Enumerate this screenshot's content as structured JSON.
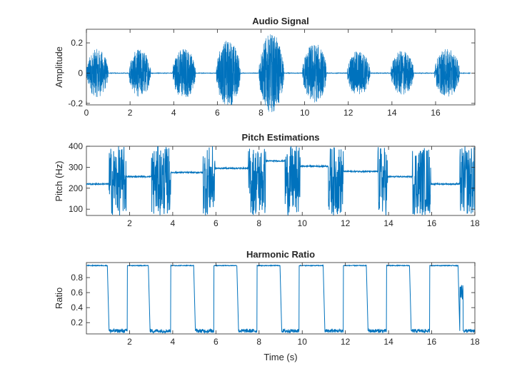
{
  "chart_data": [
    {
      "type": "line",
      "title": "Audio Signal",
      "xlabel": "",
      "ylabel": "Amplitude",
      "xlim": [
        0,
        17.8
      ],
      "ylim": [
        -0.21,
        0.29
      ],
      "xticks": [
        0,
        2,
        4,
        6,
        8,
        10,
        12,
        14,
        16
      ],
      "yticks": [
        -0.2,
        0,
        0.2
      ],
      "xtick_labels": [
        "0",
        "2",
        "4",
        "6",
        "8",
        "10",
        "12",
        "14",
        "16"
      ],
      "ytick_labels": [
        "-0.2",
        "0",
        "0.2"
      ],
      "color": "#0072BD",
      "grid": false,
      "bursts": [
        {
          "start": 0.0,
          "end": 1.0,
          "amp": 0.16
        },
        {
          "start": 1.95,
          "end": 2.95,
          "amp": 0.16
        },
        {
          "start": 3.95,
          "end": 5.0,
          "amp": 0.17
        },
        {
          "start": 5.95,
          "end": 7.05,
          "amp": 0.22
        },
        {
          "start": 7.9,
          "end": 9.05,
          "amp": 0.26
        },
        {
          "start": 9.9,
          "end": 11.0,
          "amp": 0.2
        },
        {
          "start": 11.95,
          "end": 13.0,
          "amp": 0.15
        },
        {
          "start": 13.95,
          "end": 15.0,
          "amp": 0.15
        },
        {
          "start": 15.95,
          "end": 17.1,
          "amp": 0.16
        }
      ]
    },
    {
      "type": "line",
      "title": "Pitch Estimations",
      "xlabel": "",
      "ylabel": "Pitch (Hz)",
      "xlim": [
        0,
        18
      ],
      "ylim": [
        70,
        400
      ],
      "xticks": [
        2,
        4,
        6,
        8,
        10,
        12,
        14,
        16,
        18
      ],
      "yticks": [
        100,
        200,
        300,
        400
      ],
      "xtick_labels": [
        "2",
        "4",
        "6",
        "8",
        "10",
        "12",
        "14",
        "16",
        "18"
      ],
      "ytick_labels": [
        "100",
        "200",
        "300",
        "400"
      ],
      "color": "#0072BD",
      "grid": false,
      "steady_segments": [
        {
          "start": 0.0,
          "end": 1.05,
          "pitch": 220
        },
        {
          "start": 1.85,
          "end": 3.0,
          "pitch": 255
        },
        {
          "start": 3.9,
          "end": 5.4,
          "pitch": 275
        },
        {
          "start": 5.95,
          "end": 7.5,
          "pitch": 295
        },
        {
          "start": 8.3,
          "end": 9.2,
          "pitch": 330
        },
        {
          "start": 9.9,
          "end": 11.2,
          "pitch": 305
        },
        {
          "start": 11.9,
          "end": 13.5,
          "pitch": 280
        },
        {
          "start": 13.95,
          "end": 15.1,
          "pitch": 255
        },
        {
          "start": 15.95,
          "end": 17.3,
          "pitch": 220
        }
      ],
      "noisy_regions": [
        [
          1.05,
          1.85
        ],
        [
          3.0,
          3.9
        ],
        [
          5.4,
          5.95
        ],
        [
          7.5,
          8.3
        ],
        [
          9.2,
          9.9
        ],
        [
          11.2,
          11.9
        ],
        [
          13.5,
          13.95
        ],
        [
          15.1,
          15.95
        ],
        [
          17.3,
          18.0
        ]
      ]
    },
    {
      "type": "line",
      "title": "Harmonic Ratio",
      "xlabel": "Time (s)",
      "ylabel": "Ratio",
      "xlim": [
        0,
        18
      ],
      "ylim": [
        0.05,
        1.0
      ],
      "xticks": [
        2,
        4,
        6,
        8,
        10,
        12,
        14,
        16,
        18
      ],
      "yticks": [
        0.2,
        0.4,
        0.6,
        0.8
      ],
      "xtick_labels": [
        "2",
        "4",
        "6",
        "8",
        "10",
        "12",
        "14",
        "16",
        "18"
      ],
      "ytick_labels": [
        "0.2",
        "0.4",
        "0.6",
        "0.8"
      ],
      "color": "#0072BD",
      "grid": false,
      "high_level": 0.96,
      "low_level": 0.09,
      "high_segments": [
        [
          0.0,
          1.05
        ],
        [
          1.9,
          2.95
        ],
        [
          3.9,
          5.05
        ],
        [
          5.9,
          7.05
        ],
        [
          7.9,
          9.05
        ],
        [
          9.85,
          11.05
        ],
        [
          11.9,
          13.05
        ],
        [
          13.9,
          15.05
        ],
        [
          15.9,
          17.3
        ]
      ]
    }
  ]
}
